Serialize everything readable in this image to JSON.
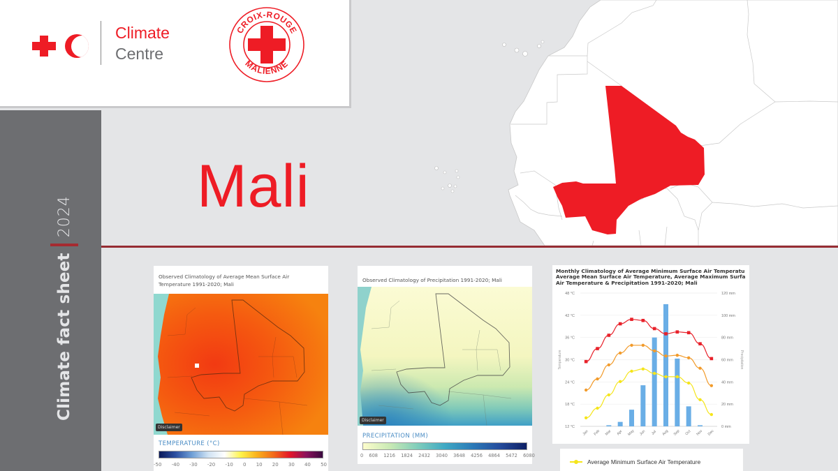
{
  "header": {
    "org_logo": {
      "icon": "red-cross-red-crescent-icon",
      "line1": "Climate",
      "line2": "Centre"
    },
    "partner_logo": {
      "icon": "croix-rouge-malienne-logo",
      "top_text": "CROIX-ROUGE",
      "bottom_text": "MALIENNE"
    }
  },
  "sidebar": {
    "title": "Climate fact sheet",
    "year": "2024"
  },
  "country": {
    "name": "Mali",
    "highlight_color": "#ee1c25"
  },
  "accent_colors": {
    "red": "#ee1c25",
    "rule": "#962c33",
    "sidebar": "#6d6e71",
    "background": "#e4e5e7"
  },
  "temperature_map": {
    "title": "Observed Climatology of Average Mean Surface Air Temperature 1991-2020; Mali",
    "disclaimer": "Disclaimer",
    "legend_title": "TEMPERATURE (°C)",
    "ticks": [
      "-50",
      "-40",
      "-30",
      "-20",
      "-10",
      "0",
      "10",
      "20",
      "30",
      "40",
      "50"
    ]
  },
  "precipitation_map": {
    "title": "Observed Climatology of Precipitation 1991-2020; Mali",
    "disclaimer": "Disclaimer",
    "legend_title": "PRECIPITATION (MM)",
    "ticks": [
      "0",
      "608",
      "1216",
      "1824",
      "2432",
      "3040",
      "3648",
      "4256",
      "4864",
      "5472",
      "6080"
    ]
  },
  "chart_data": {
    "type": "line",
    "title": "Monthly Climatology of Average Minimum Surface Air Temperature, Average Mean Surface Air Temperature, Average Maximum Surface Air Temperature & Precipitation 1991-2020; Mali",
    "title_lines": [
      "Monthly Climatology of Average Minimum Surface Air Temperatu",
      "Average Mean Surface Air Temperature, Average Maximum Surfa",
      "Air Temperature & Precipitation 1991-2020; Mali"
    ],
    "categories": [
      "Jan",
      "Feb",
      "Mar",
      "Apr",
      "May",
      "Jun",
      "Jul",
      "Aug",
      "Sep",
      "Oct",
      "Nov",
      "Dec"
    ],
    "ylabel": "Temperature",
    "y2label": "Precipitation",
    "ylim": [
      12,
      48
    ],
    "y2lim": [
      0,
      120
    ],
    "yticks": [
      "12 °C",
      "18 °C",
      "24 °C",
      "30 °C",
      "36 °C",
      "42 °C",
      "48 °C"
    ],
    "y2ticks": [
      "0 mm",
      "20 mm",
      "40 mm",
      "60 mm",
      "80 mm",
      "100 mm",
      "120 mm"
    ],
    "grid": true,
    "series": [
      {
        "name": "Average Maximum Surface Air Temperature",
        "type": "line",
        "color": "#e8212a",
        "marker": "square",
        "values": [
          29.5,
          33.0,
          36.6,
          39.7,
          40.9,
          40.6,
          38.4,
          37.0,
          37.5,
          37.3,
          34.3,
          30.3
        ]
      },
      {
        "name": "Average Mean Surface Air Temperature",
        "type": "line",
        "color": "#f29b2b",
        "marker": "circle",
        "values": [
          21.8,
          24.8,
          28.6,
          31.8,
          33.9,
          33.9,
          32.4,
          31.0,
          31.2,
          30.5,
          27.7,
          23.0
        ]
      },
      {
        "name": "Average Minimum Surface Air Temperature",
        "type": "line",
        "color": "#f5e51b",
        "marker": "circle",
        "values": [
          14.3,
          16.9,
          20.5,
          24.1,
          26.9,
          27.5,
          26.3,
          25.4,
          25.4,
          23.7,
          19.2,
          15.2
        ]
      },
      {
        "name": "Precipitation",
        "type": "bar",
        "color": "#6aaee6",
        "axis": "y2",
        "values": [
          0,
          0,
          1,
          4,
          15,
          37,
          80,
          110,
          61,
          18,
          1,
          0
        ]
      }
    ],
    "legend_visible": [
      "Average Minimum Surface Air Temperature"
    ],
    "legend_position": "bottom"
  }
}
